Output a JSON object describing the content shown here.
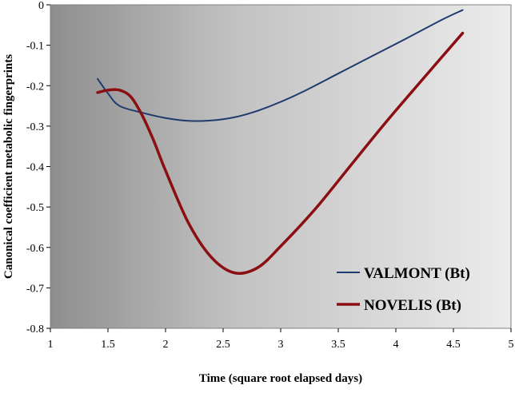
{
  "chart_data": {
    "type": "line",
    "xlabel": "Time (square root elapsed days)",
    "ylabel": "Canonical coefficient metabolic fingerprints",
    "xlim": [
      1,
      5
    ],
    "ylim": [
      -0.8,
      0
    ],
    "x_ticks": [
      1,
      1.5,
      2,
      2.5,
      3,
      3.5,
      4,
      4.5,
      5
    ],
    "x_tick_labels": [
      "1",
      "1.5",
      "2",
      "2.5",
      "3",
      "3.5",
      "4",
      "4.5",
      "5"
    ],
    "y_ticks": [
      0,
      -0.1,
      -0.2,
      -0.3,
      -0.4,
      -0.5,
      -0.6,
      -0.7,
      -0.8
    ],
    "y_tick_labels": [
      "0",
      "-0.1",
      "-0.2",
      "-0.3",
      "-0.4",
      "-0.5",
      "-0.6",
      "-0.7",
      "-0.8"
    ],
    "grid": false,
    "legend_position": "bottom-right",
    "background": "gradient dark-gray to light-gray",
    "series": [
      {
        "name": "VALMONT (Bt)",
        "color": "#1f3a6e",
        "x": [
          1.41,
          1.5,
          1.6,
          1.8,
          2.0,
          2.2,
          2.4,
          2.6,
          2.8,
          3.0,
          3.2,
          3.5,
          3.8,
          4.1,
          4.4,
          4.58
        ],
        "y": [
          -0.183,
          -0.219,
          -0.25,
          -0.267,
          -0.28,
          -0.287,
          -0.286,
          -0.278,
          -0.262,
          -0.24,
          -0.214,
          -0.17,
          -0.126,
          -0.082,
          -0.037,
          -0.013
        ]
      },
      {
        "name": "NOVELIS (Bt)",
        "color": "#8b0f12",
        "x": [
          1.41,
          1.5,
          1.6,
          1.7,
          1.8,
          1.9,
          2.0,
          2.2,
          2.4,
          2.6,
          2.8,
          3.0,
          3.3,
          3.6,
          3.9,
          4.2,
          4.58
        ],
        "y": [
          -0.217,
          -0.211,
          -0.211,
          -0.228,
          -0.275,
          -0.338,
          -0.41,
          -0.54,
          -0.625,
          -0.663,
          -0.65,
          -0.597,
          -0.505,
          -0.4,
          -0.295,
          -0.195,
          -0.07
        ]
      }
    ]
  }
}
